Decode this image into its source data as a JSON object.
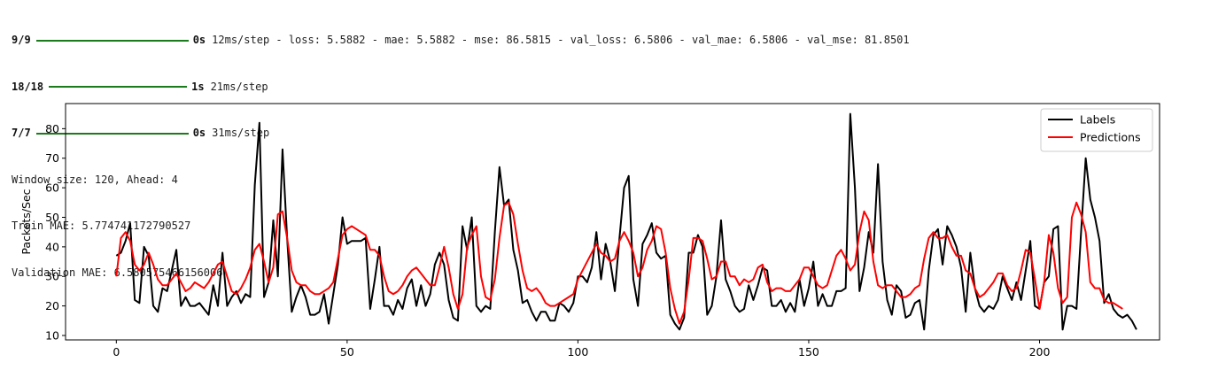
{
  "console": {
    "lines": [
      {
        "epoch": "9/9",
        "time": "0s",
        "metrics": "12ms/step - loss: 5.5882 - mae: 5.5882 - mse: 86.5815 - val_loss: 6.5806 - val_mae: 6.5806 - val_mse: 81.8501"
      },
      {
        "epoch": "18/18",
        "time": "1s",
        "metrics": "21ms/step"
      },
      {
        "epoch": "7/7",
        "time": "0s",
        "metrics": "31ms/step"
      }
    ],
    "window_info": "Window size: 120, Ahead: 4",
    "train_mae": "Train MAE: 5.774741172790527",
    "val_mae": "Validation MAE: 6.580575466156006"
  },
  "chart_data": {
    "type": "line",
    "title": "",
    "xlabel": "",
    "ylabel": "Packets/Sec",
    "xlim": [
      -11,
      226
    ],
    "ylim": [
      8.5,
      88.5
    ],
    "xticks": [
      0,
      50,
      100,
      150,
      200
    ],
    "yticks": [
      10,
      20,
      30,
      40,
      50,
      60,
      70,
      80
    ],
    "grid": false,
    "legend_position": "top-right",
    "x_start": 0,
    "series": [
      {
        "name": "Labels",
        "color": "#000000",
        "values": [
          37,
          38,
          42,
          48,
          22,
          21,
          40,
          37,
          20,
          18,
          26,
          25,
          32,
          39,
          20,
          23,
          20,
          20,
          21,
          19,
          17,
          27,
          20,
          38,
          20,
          23,
          25,
          21,
          24,
          23,
          61,
          82,
          23,
          28,
          49,
          30,
          73,
          43,
          18,
          23,
          27,
          23,
          17,
          17,
          18,
          24,
          14,
          24,
          34,
          50,
          41,
          42,
          42,
          42,
          43,
          19,
          29,
          40,
          20,
          20,
          17,
          22,
          19,
          26,
          29,
          20,
          27,
          20,
          24,
          34,
          38,
          34,
          22,
          16,
          15,
          47,
          39,
          50,
          20,
          18,
          20,
          19,
          45,
          67,
          54,
          56,
          39,
          32,
          21,
          22,
          18,
          15,
          18,
          18,
          15,
          15,
          21,
          20,
          18,
          21,
          30,
          30,
          28,
          33,
          45,
          29,
          41,
          35,
          25,
          43,
          60,
          64,
          29,
          20,
          41,
          44,
          48,
          38,
          36,
          37,
          17,
          14,
          12,
          16,
          38,
          38,
          44,
          40,
          17,
          20,
          30,
          49,
          29,
          25,
          20,
          18,
          19,
          27,
          22,
          27,
          33,
          32,
          20,
          20,
          22,
          18,
          21,
          18,
          29,
          20,
          26,
          35,
          20,
          24,
          20,
          20,
          25,
          25,
          26,
          85,
          60,
          25,
          33,
          45,
          38,
          68,
          35,
          22,
          17,
          27,
          25,
          16,
          17,
          21,
          22,
          12,
          32,
          44,
          46,
          34,
          47,
          44,
          40,
          33,
          18,
          38,
          26,
          20,
          18,
          20,
          19,
          22,
          30,
          26,
          22,
          28,
          22,
          32,
          42,
          20,
          19,
          28,
          30,
          46,
          47,
          12,
          20,
          20,
          19,
          45,
          70,
          56,
          50,
          42,
          21,
          24,
          19,
          17,
          16,
          17,
          15,
          12
        ]
      },
      {
        "name": "Predictions",
        "color": "#ff0000",
        "values": [
          30,
          43,
          45,
          42,
          34,
          32,
          34,
          38,
          34,
          29,
          27,
          27,
          29,
          31,
          28,
          25,
          26,
          28,
          27,
          26,
          28,
          31,
          34,
          35,
          30,
          25,
          24,
          26,
          29,
          33,
          39,
          41,
          35,
          28,
          33,
          51,
          52,
          43,
          32,
          28,
          27,
          27,
          25,
          24,
          24,
          25,
          26,
          28,
          36,
          44,
          46,
          47,
          46,
          45,
          44,
          39,
          39,
          37,
          30,
          25,
          24,
          25,
          27,
          30,
          32,
          33,
          31,
          29,
          27,
          27,
          33,
          40,
          33,
          24,
          19,
          24,
          40,
          44,
          47,
          30,
          23,
          22,
          29,
          43,
          54,
          55,
          51,
          41,
          32,
          26,
          25,
          26,
          24,
          21,
          20,
          20,
          21,
          22,
          23,
          24,
          29,
          32,
          35,
          38,
          41,
          38,
          37,
          35,
          36,
          42,
          45,
          42,
          38,
          30,
          33,
          39,
          42,
          47,
          46,
          38,
          26,
          19,
          14,
          18,
          29,
          43,
          43,
          42,
          36,
          29,
          30,
          35,
          35,
          30,
          30,
          27,
          29,
          28,
          29,
          33,
          34,
          28,
          25,
          26,
          26,
          25,
          25,
          27,
          29,
          33,
          33,
          30,
          27,
          26,
          27,
          32,
          37,
          39,
          36,
          32,
          34,
          45,
          52,
          49,
          35,
          27,
          26,
          27,
          27,
          25,
          23,
          23,
          24,
          26,
          27,
          36,
          43,
          45,
          43,
          43,
          44,
          40,
          37,
          37,
          32,
          31,
          26,
          23,
          24,
          26,
          28,
          31,
          31,
          27,
          25,
          26,
          32,
          39,
          38,
          29,
          19,
          28,
          44,
          38,
          26,
          21,
          23,
          50,
          55,
          51,
          45,
          28,
          26,
          26,
          22,
          21,
          21,
          20,
          19
        ]
      }
    ]
  }
}
